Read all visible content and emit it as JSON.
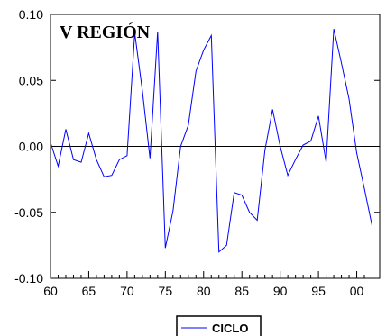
{
  "chart_data": {
    "type": "line",
    "title": "V REGIÓN",
    "xlabel": "",
    "ylabel": "",
    "xlim": [
      1960,
      2003
    ],
    "ylim": [
      -0.1,
      0.1
    ],
    "grid": false,
    "legend_position": "bottom-center",
    "zero_line": true,
    "x_ticks": [
      {
        "value": 1960,
        "label": "60"
      },
      {
        "value": 1965,
        "label": "65"
      },
      {
        "value": 1970,
        "label": "70"
      },
      {
        "value": 1975,
        "label": "75"
      },
      {
        "value": 1980,
        "label": "80"
      },
      {
        "value": 1985,
        "label": "85"
      },
      {
        "value": 1990,
        "label": "90"
      },
      {
        "value": 1995,
        "label": "95"
      },
      {
        "value": 2000,
        "label": "00"
      }
    ],
    "y_ticks": [
      {
        "value": 0.1,
        "label": "0.10"
      },
      {
        "value": 0.05,
        "label": "0.05"
      },
      {
        "value": 0.0,
        "label": "0.00"
      },
      {
        "value": -0.05,
        "label": "-0.05"
      },
      {
        "value": -0.1,
        "label": "-0.10"
      }
    ],
    "series": [
      {
        "name": "CICLO",
        "color": "#0000ff",
        "x": [
          1960,
          1961,
          1962,
          1963,
          1964,
          1965,
          1966,
          1967,
          1968,
          1969,
          1970,
          1971,
          1972,
          1973,
          1974,
          1975,
          1976,
          1977,
          1978,
          1979,
          1980,
          1981,
          1982,
          1983,
          1984,
          1985,
          1986,
          1987,
          1988,
          1989,
          1990,
          1991,
          1992,
          1993,
          1994,
          1995,
          1996,
          1997,
          1998,
          1999,
          2000,
          2001,
          2002
        ],
        "values": [
          0.003,
          -0.015,
          0.013,
          -0.01,
          -0.012,
          0.01,
          -0.01,
          -0.023,
          -0.022,
          -0.01,
          -0.007,
          0.086,
          0.042,
          -0.009,
          0.087,
          -0.077,
          -0.049,
          0.0,
          0.016,
          0.057,
          0.073,
          0.084,
          -0.08,
          -0.075,
          -0.035,
          -0.037,
          -0.05,
          -0.056,
          -0.003,
          0.028,
          0.0,
          -0.022,
          -0.01,
          0.001,
          0.004,
          0.023,
          -0.012,
          0.089,
          0.063,
          0.036,
          -0.005,
          -0.032,
          -0.06
        ]
      }
    ]
  }
}
